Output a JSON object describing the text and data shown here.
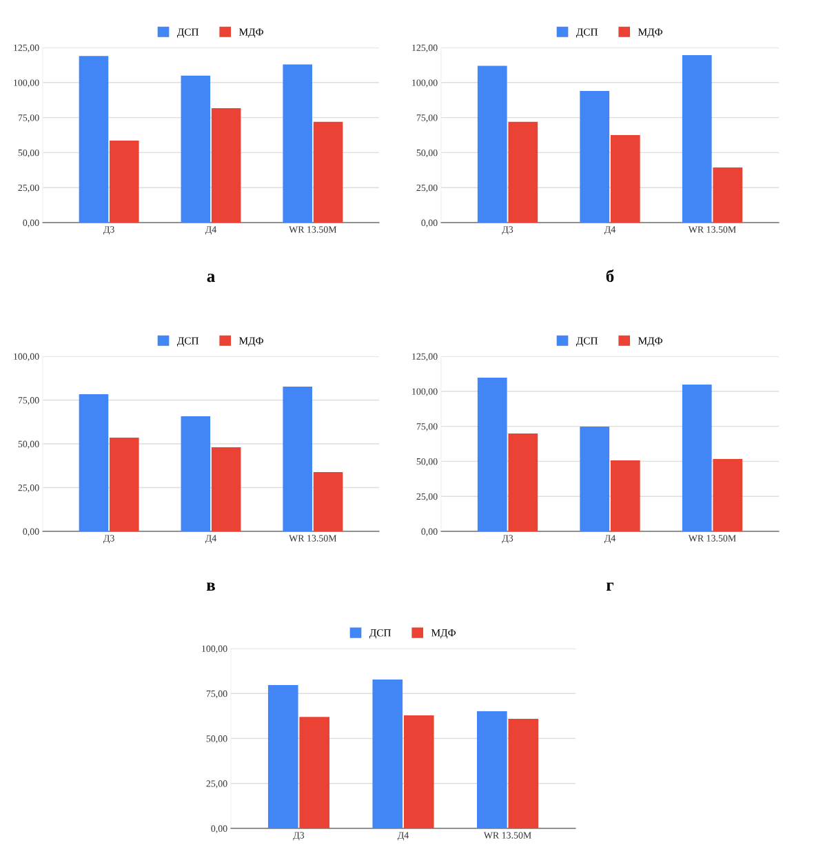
{
  "chart_data": [
    {
      "type": "bar",
      "categories": [
        "Д3",
        "Д4",
        "WR 13.50M"
      ],
      "series": [
        {
          "name": "ДСП",
          "color": "#4285f4",
          "values": [
            119,
            105,
            113
          ]
        },
        {
          "name": "МДФ",
          "color": "#ea4335",
          "values": [
            58.6,
            81.7,
            72
          ]
        }
      ],
      "ylim": [
        0,
        125
      ],
      "yticks": [
        {
          "value": 0,
          "label": "0,00"
        },
        {
          "value": 25,
          "label": "25,00"
        },
        {
          "value": 50,
          "label": "50,00"
        },
        {
          "value": 75,
          "label": "75,00"
        },
        {
          "value": 100,
          "label": "100,00"
        },
        {
          "value": 125,
          "label": "125,00"
        }
      ],
      "grid": "y",
      "legend": "top",
      "annotations": [
        "а"
      ]
    },
    {
      "type": "bar",
      "categories": [
        "Д3",
        "Д4",
        "WR 13.50M"
      ],
      "series": [
        {
          "name": "ДСП",
          "color": "#4285f4",
          "values": [
            112,
            94,
            119.6
          ]
        },
        {
          "name": "МДФ",
          "color": "#ea4335",
          "values": [
            72,
            62.5,
            39.4
          ]
        }
      ],
      "ylim": [
        0,
        125
      ],
      "yticks": [
        {
          "value": 0,
          "label": "0,00"
        },
        {
          "value": 25,
          "label": "25,00"
        },
        {
          "value": 50,
          "label": "50,00"
        },
        {
          "value": 75,
          "label": "75,00"
        },
        {
          "value": 100,
          "label": "100,00"
        },
        {
          "value": 125,
          "label": "125,00"
        }
      ],
      "grid": "y",
      "legend": "top",
      "annotations": [
        "б"
      ]
    },
    {
      "type": "bar",
      "categories": [
        "Д3",
        "Д4",
        "WR 13.50M"
      ],
      "series": [
        {
          "name": "ДСП",
          "color": "#4285f4",
          "values": [
            78.3,
            65.7,
            82.7
          ]
        },
        {
          "name": "МДФ",
          "color": "#ea4335",
          "values": [
            53.5,
            48,
            33.9
          ]
        }
      ],
      "ylim": [
        0,
        100
      ],
      "yticks": [
        {
          "value": 0,
          "label": "0,00"
        },
        {
          "value": 25,
          "label": "25,00"
        },
        {
          "value": 50,
          "label": "50,00"
        },
        {
          "value": 75,
          "label": "75,00"
        },
        {
          "value": 100,
          "label": "100,00"
        }
      ],
      "grid": "y",
      "legend": "top",
      "annotations": [
        "в"
      ]
    },
    {
      "type": "bar",
      "categories": [
        "Д3",
        "Д4",
        "WR 13.50M"
      ],
      "series": [
        {
          "name": "ДСП",
          "color": "#4285f4",
          "values": [
            109.7,
            74.8,
            104.8
          ]
        },
        {
          "name": "МДФ",
          "color": "#ea4335",
          "values": [
            69.9,
            50.7,
            51.7
          ]
        }
      ],
      "ylim": [
        0,
        125
      ],
      "yticks": [
        {
          "value": 0,
          "label": "0,00"
        },
        {
          "value": 25,
          "label": "25,00"
        },
        {
          "value": 50,
          "label": "50,00"
        },
        {
          "value": 75,
          "label": "75,00"
        },
        {
          "value": 100,
          "label": "100,00"
        },
        {
          "value": 125,
          "label": "125,00"
        }
      ],
      "grid": "y",
      "legend": "top",
      "annotations": [
        "г"
      ]
    },
    {
      "type": "bar",
      "categories": [
        "Д3",
        "Д4",
        "WR 13.50M"
      ],
      "series": [
        {
          "name": "ДСП",
          "color": "#4285f4",
          "values": [
            79.7,
            82.8,
            65.1
          ]
        },
        {
          "name": "МДФ",
          "color": "#ea4335",
          "values": [
            62,
            62.8,
            60.9
          ]
        }
      ],
      "ylim": [
        0,
        100
      ],
      "yticks": [
        {
          "value": 0,
          "label": "0,00"
        },
        {
          "value": 25,
          "label": "25,00"
        },
        {
          "value": 50,
          "label": "50,00"
        },
        {
          "value": 75,
          "label": "75,00"
        },
        {
          "value": 100,
          "label": "100,00"
        }
      ],
      "grid": "y",
      "legend": "top"
    }
  ]
}
